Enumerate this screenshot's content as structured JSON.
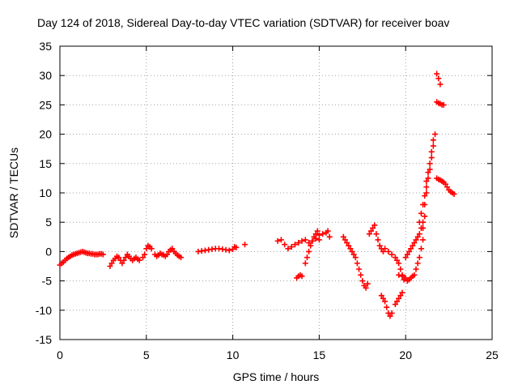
{
  "chart_data": {
    "type": "scatter",
    "title": "Day 124 of 2018, Sidereal Day-to-day VTEC variation (SDTVAR) for receiver boav",
    "xlabel": "GPS time / hours",
    "ylabel": "SDTVAR / TECUs",
    "xlim": [
      0,
      25
    ],
    "ylim": [
      -15,
      35
    ],
    "xticks": [
      0,
      5,
      10,
      15,
      20,
      25
    ],
    "yticks": [
      -15,
      -10,
      -5,
      0,
      5,
      10,
      15,
      20,
      25,
      30,
      35
    ],
    "grid": true,
    "marker": "+",
    "color": "#ff0000",
    "series": [
      {
        "name": "SDTVAR",
        "points": [
          [
            0.0,
            -2.3
          ],
          [
            0.1,
            -2.0
          ],
          [
            0.2,
            -1.8
          ],
          [
            0.3,
            -1.5
          ],
          [
            0.4,
            -1.2
          ],
          [
            0.5,
            -1.0
          ],
          [
            0.6,
            -0.8
          ],
          [
            0.7,
            -0.6
          ],
          [
            0.8,
            -0.5
          ],
          [
            0.9,
            -0.4
          ],
          [
            1.0,
            -0.3
          ],
          [
            1.1,
            -0.2
          ],
          [
            1.2,
            -0.1
          ],
          [
            1.3,
            0.0
          ],
          [
            1.4,
            -0.1
          ],
          [
            1.5,
            -0.2
          ],
          [
            1.6,
            -0.3
          ],
          [
            1.7,
            -0.3
          ],
          [
            1.8,
            -0.4
          ],
          [
            1.9,
            -0.4
          ],
          [
            2.0,
            -0.5
          ],
          [
            2.1,
            -0.5
          ],
          [
            2.2,
            -0.5
          ],
          [
            2.3,
            -0.4
          ],
          [
            2.4,
            -0.4
          ],
          [
            2.5,
            -0.5
          ],
          [
            2.9,
            -2.5
          ],
          [
            3.0,
            -2.0
          ],
          [
            3.1,
            -1.5
          ],
          [
            3.2,
            -1.2
          ],
          [
            3.3,
            -0.8
          ],
          [
            3.4,
            -1.0
          ],
          [
            3.5,
            -1.5
          ],
          [
            3.6,
            -2.0
          ],
          [
            3.7,
            -1.5
          ],
          [
            3.8,
            -1.0
          ],
          [
            3.9,
            -0.5
          ],
          [
            4.0,
            -0.8
          ],
          [
            4.1,
            -1.2
          ],
          [
            4.2,
            -1.5
          ],
          [
            4.3,
            -1.2
          ],
          [
            4.4,
            -1.0
          ],
          [
            4.5,
            -1.3
          ],
          [
            4.6,
            -1.5
          ],
          [
            4.8,
            -1.0
          ],
          [
            4.9,
            -0.5
          ],
          [
            5.0,
            0.5
          ],
          [
            5.1,
            1.0
          ],
          [
            5.2,
            0.8
          ],
          [
            5.3,
            0.5
          ],
          [
            5.5,
            -0.5
          ],
          [
            5.6,
            -0.8
          ],
          [
            5.7,
            -0.6
          ],
          [
            5.8,
            -0.3
          ],
          [
            5.9,
            -0.5
          ],
          [
            6.0,
            -0.6
          ],
          [
            6.1,
            -0.8
          ],
          [
            6.2,
            -0.5
          ],
          [
            6.3,
            0.0
          ],
          [
            6.4,
            0.3
          ],
          [
            6.5,
            0.5
          ],
          [
            6.6,
            0.0
          ],
          [
            6.7,
            -0.3
          ],
          [
            6.8,
            -0.6
          ],
          [
            6.9,
            -0.8
          ],
          [
            7.0,
            -1.0
          ],
          [
            8.0,
            0.0
          ],
          [
            8.2,
            0.1
          ],
          [
            8.4,
            0.2
          ],
          [
            8.6,
            0.3
          ],
          [
            8.8,
            0.4
          ],
          [
            9.0,
            0.5
          ],
          [
            9.2,
            0.5
          ],
          [
            9.4,
            0.4
          ],
          [
            9.6,
            0.3
          ],
          [
            9.8,
            0.2
          ],
          [
            10.0,
            0.4
          ],
          [
            10.1,
            0.8
          ],
          [
            10.2,
            0.7
          ],
          [
            10.7,
            1.2
          ],
          [
            12.6,
            1.8
          ],
          [
            12.8,
            2.0
          ],
          [
            13.0,
            1.2
          ],
          [
            13.2,
            0.5
          ],
          [
            13.4,
            0.8
          ],
          [
            13.6,
            1.2
          ],
          [
            13.8,
            1.5
          ],
          [
            14.0,
            1.8
          ],
          [
            14.2,
            2.0
          ],
          [
            14.4,
            1.5
          ],
          [
            14.6,
            1.8
          ],
          [
            14.8,
            2.2
          ],
          [
            15.0,
            2.8
          ],
          [
            15.2,
            3.0
          ],
          [
            15.4,
            3.2
          ],
          [
            15.5,
            3.5
          ],
          [
            15.6,
            2.5
          ],
          [
            13.7,
            -4.5
          ],
          [
            13.8,
            -4.2
          ],
          [
            13.9,
            -4.0
          ],
          [
            14.0,
            -4.2
          ],
          [
            14.2,
            -2.0
          ],
          [
            14.3,
            -1.0
          ],
          [
            14.4,
            0.0
          ],
          [
            14.5,
            1.0
          ],
          [
            14.6,
            1.8
          ],
          [
            14.7,
            2.5
          ],
          [
            14.8,
            3.0
          ],
          [
            14.9,
            3.5
          ],
          [
            15.0,
            2.0
          ],
          [
            16.4,
            2.5
          ],
          [
            16.5,
            2.0
          ],
          [
            16.6,
            1.5
          ],
          [
            16.7,
            1.0
          ],
          [
            16.8,
            0.5
          ],
          [
            16.9,
            0.0
          ],
          [
            17.0,
            -0.5
          ],
          [
            17.1,
            -1.0
          ],
          [
            17.2,
            -2.0
          ],
          [
            17.3,
            -3.0
          ],
          [
            17.4,
            -4.0
          ],
          [
            17.5,
            -5.0
          ],
          [
            17.6,
            -5.8
          ],
          [
            17.7,
            -6.2
          ],
          [
            17.8,
            -5.5
          ],
          [
            17.9,
            3.0
          ],
          [
            18.0,
            3.5
          ],
          [
            18.1,
            4.0
          ],
          [
            18.2,
            4.5
          ],
          [
            18.3,
            3.0
          ],
          [
            18.4,
            2.0
          ],
          [
            18.5,
            1.0
          ],
          [
            18.6,
            0.5
          ],
          [
            18.7,
            0.0
          ],
          [
            18.6,
            -7.5
          ],
          [
            18.7,
            -8.0
          ],
          [
            18.8,
            -8.5
          ],
          [
            18.9,
            -9.5
          ],
          [
            19.0,
            -10.5
          ],
          [
            19.1,
            -11.0
          ],
          [
            19.2,
            -10.5
          ],
          [
            18.8,
            0.5
          ],
          [
            19.0,
            0.0
          ],
          [
            19.2,
            -0.5
          ],
          [
            19.4,
            -1.0
          ],
          [
            19.5,
            -1.5
          ],
          [
            19.6,
            -2.0
          ],
          [
            19.7,
            -3.0
          ],
          [
            19.8,
            -4.0
          ],
          [
            19.9,
            -4.8
          ],
          [
            19.4,
            -9.0
          ],
          [
            19.5,
            -8.5
          ],
          [
            19.6,
            -8.0
          ],
          [
            19.7,
            -7.5
          ],
          [
            19.8,
            -7.0
          ],
          [
            19.6,
            -4.0
          ],
          [
            19.8,
            -4.2
          ],
          [
            20.0,
            -4.5
          ],
          [
            20.1,
            -5.0
          ],
          [
            20.2,
            -4.8
          ],
          [
            20.3,
            -4.5
          ],
          [
            20.4,
            -4.2
          ],
          [
            20.5,
            -4.0
          ],
          [
            20.0,
            -1.0
          ],
          [
            20.1,
            -0.5
          ],
          [
            20.2,
            0.0
          ],
          [
            20.3,
            0.5
          ],
          [
            20.4,
            1.0
          ],
          [
            20.5,
            1.5
          ],
          [
            20.6,
            2.0
          ],
          [
            20.7,
            2.5
          ],
          [
            20.8,
            3.0
          ],
          [
            20.9,
            4.0
          ],
          [
            21.0,
            5.0
          ],
          [
            20.6,
            -3.0
          ],
          [
            20.7,
            -2.0
          ],
          [
            20.8,
            -1.0
          ],
          [
            20.9,
            0.5
          ],
          [
            21.0,
            2.0
          ],
          [
            21.0,
            4.0
          ],
          [
            21.1,
            6.0
          ],
          [
            21.1,
            8.0
          ],
          [
            21.2,
            10.0
          ],
          [
            21.2,
            12.0
          ],
          [
            21.3,
            13.5
          ],
          [
            21.4,
            15.0
          ],
          [
            21.5,
            17.0
          ],
          [
            21.6,
            19.0
          ],
          [
            21.7,
            20.0
          ],
          [
            20.8,
            5.0
          ],
          [
            20.9,
            6.5
          ],
          [
            21.0,
            8.0
          ],
          [
            21.1,
            9.5
          ],
          [
            21.2,
            11.0
          ],
          [
            21.3,
            12.5
          ],
          [
            21.4,
            14.0
          ],
          [
            21.5,
            16.0
          ],
          [
            21.6,
            18.0
          ],
          [
            21.8,
            30.3
          ],
          [
            21.9,
            29.5
          ],
          [
            22.0,
            28.5
          ],
          [
            21.8,
            25.5
          ],
          [
            21.9,
            25.3
          ],
          [
            22.0,
            25.2
          ],
          [
            22.1,
            25.0
          ],
          [
            22.2,
            25.0
          ],
          [
            21.8,
            12.5
          ],
          [
            21.9,
            12.3
          ],
          [
            22.0,
            12.2
          ],
          [
            22.1,
            12.0
          ],
          [
            22.2,
            11.8
          ],
          [
            22.3,
            11.5
          ],
          [
            22.4,
            11.0
          ],
          [
            22.5,
            10.5
          ],
          [
            22.6,
            10.2
          ],
          [
            22.7,
            10.0
          ],
          [
            22.8,
            9.8
          ]
        ]
      }
    ]
  }
}
